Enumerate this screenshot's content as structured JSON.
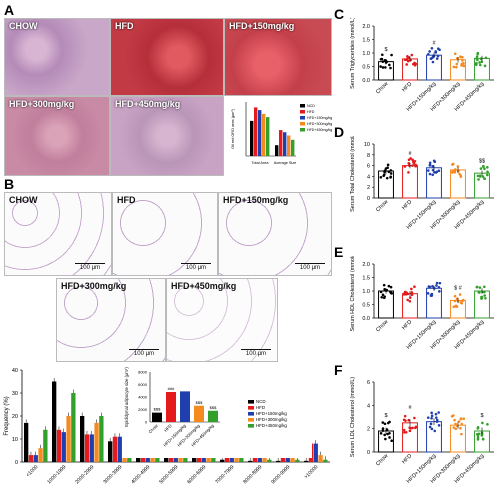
{
  "panels": {
    "A": "A",
    "B": "B",
    "C": "C",
    "D": "D",
    "E": "E",
    "F": "F"
  },
  "panelA": {
    "images": [
      "CHOW",
      "HFD",
      "HFD+150mg/kg",
      "HFD+300mg/kg",
      "HFD+450mg/kg"
    ],
    "colors": {
      "chow": "#c9a7c9",
      "hfd": "#c23a44",
      "d150": "#c84a52",
      "d300": "#c88aa4",
      "d450": "#c9a3c4"
    }
  },
  "panelB": {
    "images": [
      "CHOW",
      "HFD",
      "HFD+150mg/kg",
      "HFD+300mg/kg",
      "HFD+450mg/kg"
    ],
    "scale": "100 μm"
  },
  "groups": [
    "Chow",
    "HFD",
    "HFD+150mg/kg",
    "HFD+300mg/kg",
    "HFD+450mg/kg"
  ],
  "legend_labels": [
    "NCD",
    "HFD",
    "HFD+150mg/kg",
    "HFD+300mg/kg",
    "HFD+450mg/kg"
  ],
  "colors": {
    "chow": "#000000",
    "hfd": "#e41a1c",
    "d150": "#1f3fae",
    "d300": "#f58a1f",
    "d450": "#33a02c"
  },
  "chart_data": [
    {
      "id": "C",
      "type": "bar",
      "ylabel": "Serum Triglycerides (mmol/L)",
      "ylim": [
        0,
        2.0
      ],
      "yticks": [
        0.0,
        0.5,
        1.0,
        1.5,
        2.0
      ],
      "categories": [
        "Chow",
        "HFD",
        "HFD+150mg/kg",
        "HFD+300mg/kg",
        "HFD+450mg/kg"
      ],
      "values": [
        0.68,
        0.78,
        0.92,
        0.75,
        0.8
      ],
      "sig": [
        "$",
        "",
        "#",
        "",
        ""
      ]
    },
    {
      "id": "D",
      "type": "bar",
      "ylabel": "Serum Total Cholesterol (mmol/L)",
      "ylim": [
        0,
        10
      ],
      "yticks": [
        0,
        2,
        4,
        6,
        8,
        10
      ],
      "categories": [
        "Chow",
        "HFD",
        "HFD+150mg/kg",
        "HFD+300mg/kg",
        "HFD+450mg/kg"
      ],
      "values": [
        5.0,
        6.0,
        5.6,
        5.2,
        4.6
      ],
      "sig": [
        "",
        "#",
        "",
        "",
        "$$"
      ]
    },
    {
      "id": "E",
      "type": "bar",
      "ylabel": "Serum HDL Cholesterol (mmol/L)",
      "ylim": [
        0,
        2.0
      ],
      "yticks": [
        0.0,
        0.5,
        1.0,
        1.5,
        2.0
      ],
      "categories": [
        "Chow",
        "HFD",
        "HFD+150mg/kg",
        "HFD+300mg/kg",
        "HFD+450mg/kg"
      ],
      "values": [
        1.0,
        0.9,
        1.1,
        0.65,
        1.0
      ],
      "sig": [
        "",
        "",
        "",
        "$\n#",
        ""
      ]
    },
    {
      "id": "F",
      "type": "bar",
      "ylabel": "Serum LDL Cholesterol (mmol/L)",
      "ylim": [
        0,
        6
      ],
      "yticks": [
        0,
        2,
        4,
        6
      ],
      "categories": [
        "Chow",
        "HFD",
        "HFD+150mg/kg",
        "HFD+300mg/kg",
        "HFD+450mg/kg"
      ],
      "values": [
        1.8,
        2.5,
        2.6,
        2.3,
        1.8
      ],
      "sig": [
        "$",
        "#",
        "",
        "",
        "$"
      ]
    },
    {
      "id": "A-inset",
      "type": "bar",
      "ylabel": "Oil red ORO area (μm²)",
      "categories": [
        "Total Area",
        "Average Size"
      ],
      "series": [
        {
          "name": "NCD",
          "values": [
            0.65,
            0.2
          ]
        },
        {
          "name": "HFD",
          "values": [
            0.9,
            0.48
          ]
        },
        {
          "name": "HFD+150mg/kg",
          "values": [
            0.85,
            0.44
          ]
        },
        {
          "name": "HFD+300mg/kg",
          "values": [
            0.78,
            0.38
          ]
        },
        {
          "name": "HFD+450mg/kg",
          "values": [
            0.72,
            0.3
          ]
        }
      ]
    },
    {
      "id": "B-inset",
      "type": "bar",
      "ylabel": "Epididymal adipocyte size (μm²)",
      "ylim": [
        0,
        8000
      ],
      "yticks": [
        0,
        2000,
        4000,
        6000,
        8000
      ],
      "categories": [
        "Chow",
        "HFD",
        "HFD+150mg/kg",
        "HFD+300mg/kg",
        "HFD+450mg/kg"
      ],
      "values": [
        1500,
        4800,
        4900,
        2600,
        1800
      ],
      "sig": [
        "$$$",
        "###",
        "",
        "$$$",
        "$$$"
      ],
      "legend": [
        "NCD",
        "HFD",
        "HFD+150mg/kg",
        "HFD+300mg/kg",
        "HFD+450mg/kg"
      ]
    },
    {
      "id": "B-hist",
      "type": "bar",
      "ylabel": "Frequency (%)",
      "ylim": [
        0,
        40
      ],
      "yticks": [
        0,
        10,
        20,
        30,
        40
      ],
      "categories": [
        "<1000",
        "1000-1999",
        "2000-2999",
        "3000-3999",
        "4000-4999",
        "5000-5999",
        "6000-6999",
        "7000-7999",
        "8000-8999",
        "9000-9999",
        ">10000"
      ],
      "series": [
        {
          "name": "NCD",
          "values": [
            17,
            35,
            20,
            9,
            5,
            3,
            2,
            1,
            0.5,
            0.5,
            0.5
          ]
        },
        {
          "name": "HFD",
          "values": [
            3,
            14,
            12,
            11,
            10,
            9,
            7,
            6,
            5,
            4,
            8
          ]
        },
        {
          "name": "HFD+150mg/kg",
          "values": [
            3,
            13,
            12,
            11,
            10,
            9,
            7,
            6,
            5,
            4,
            8
          ]
        },
        {
          "name": "HFD+300mg/kg",
          "values": [
            6,
            20,
            17,
            13,
            10,
            7,
            5,
            4,
            3,
            2,
            3
          ]
        },
        {
          "name": "HFD+450mg/kg",
          "values": [
            14,
            30,
            20,
            10,
            6,
            4,
            3,
            2,
            1,
            1,
            1
          ]
        }
      ]
    }
  ]
}
